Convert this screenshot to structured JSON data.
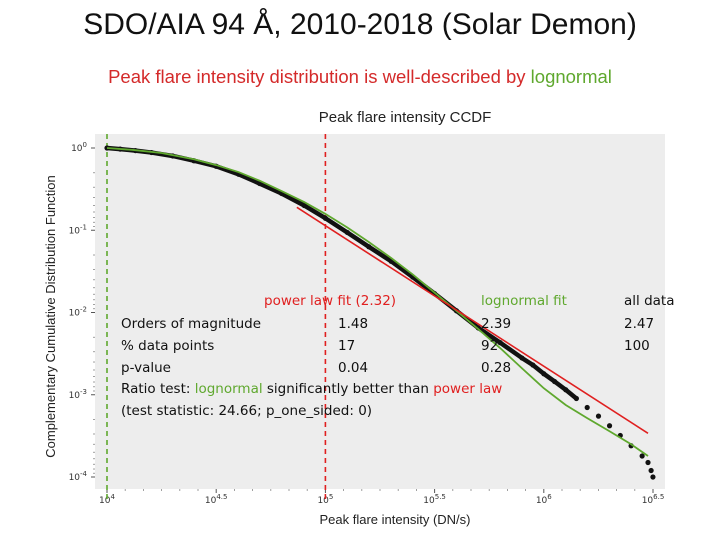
{
  "slide": {
    "title": "SDO/AIA 94 Å, 2010-2018 (Solar Demon)",
    "subtitle_prefix": "Peak flare intensity distribution is well-described by ",
    "subtitle_highlight": "lognormal"
  },
  "table": {
    "header_powerlaw": "power law fit (2.32)",
    "header_lognormal": "lognormal fit",
    "header_all": "all data",
    "rows": [
      {
        "label": "Orders of magnitude",
        "powerlaw": "1.48",
        "lognormal": "2.39",
        "all": "2.47"
      },
      {
        "label": "% data points",
        "powerlaw": "17",
        "lognormal": "92",
        "all": "100"
      },
      {
        "label": "p-value",
        "powerlaw": "0.04",
        "lognormal": "0.28",
        "all": ""
      }
    ],
    "ratio_prefix": "Ratio test: ",
    "ratio_lognormal": "lognormal",
    "ratio_middle": " significantly better than ",
    "ratio_powerlaw": "power law",
    "test_statistic": "(test statistic: 24.66; p_one_sided: 0)"
  },
  "colors": {
    "red": "#e02020",
    "green": "#5fa82e",
    "data": "#111111",
    "panel": "#ededed"
  },
  "chart_data": {
    "type": "scatter",
    "title": "Peak flare intensity CCDF",
    "xlabel": "Peak flare intensity (DN/s)",
    "ylabel": "Complementary Cumulative Distribution Function",
    "x_scale": "log",
    "y_scale": "log",
    "xlim": [
      10000,
      3162278
    ],
    "ylim": [
      0.0001,
      1
    ],
    "x_ticks": [
      {
        "value": 10000,
        "label": "10^4"
      },
      {
        "value": 31623,
        "label": "10^4.5"
      },
      {
        "value": 100000,
        "label": "10^5"
      },
      {
        "value": 316228,
        "label": "10^5.5"
      },
      {
        "value": 1000000,
        "label": "10^6"
      },
      {
        "value": 3162278,
        "label": "10^6.5"
      }
    ],
    "y_ticks": [
      {
        "value": 1,
        "label": "10^0"
      },
      {
        "value": 0.1,
        "label": "10^-1"
      },
      {
        "value": 0.01,
        "label": "10^-2"
      },
      {
        "value": 0.001,
        "label": "10^-3"
      },
      {
        "value": 0.0001,
        "label": "10^-4"
      }
    ],
    "series": [
      {
        "kind": "data",
        "x": [
          10000,
          11500,
          13500,
          16000,
          20000,
          25000,
          31600,
          40000,
          50000,
          63000,
          80000,
          100000,
          126000,
          158000,
          200000,
          251000,
          316000,
          398000,
          501000,
          631000,
          794000,
          891000,
          1000000,
          1120000,
          1260000,
          1410000,
          1580000,
          1780000,
          2000000,
          2240000,
          2510000,
          2820000,
          3000000,
          3100000,
          3160000
        ],
        "y": [
          1.0,
          0.97,
          0.93,
          0.88,
          0.8,
          0.7,
          0.6,
          0.48,
          0.37,
          0.28,
          0.2,
          0.14,
          0.094,
          0.063,
          0.042,
          0.027,
          0.017,
          0.0105,
          0.0065,
          0.0043,
          0.0028,
          0.0023,
          0.0018,
          0.00145,
          0.00115,
          0.0009,
          0.0007,
          0.00055,
          0.00042,
          0.00032,
          0.00024,
          0.00018,
          0.00015,
          0.00012,
          0.0001
        ]
      },
      {
        "kind": "lognormal_fit",
        "x": [
          10000,
          13000,
          17800,
          25000,
          31600,
          40000,
          50000,
          63000,
          80000,
          100000,
          126000,
          158000,
          200000,
          251000,
          316000,
          398000,
          501000,
          631000,
          794000,
          1000000,
          1260000,
          1580000,
          2000000,
          2510000,
          3000000
        ],
        "y": [
          1.0,
          0.95,
          0.87,
          0.73,
          0.62,
          0.51,
          0.4,
          0.3,
          0.22,
          0.158,
          0.108,
          0.072,
          0.046,
          0.029,
          0.0175,
          0.0105,
          0.0063,
          0.0037,
          0.0021,
          0.0012,
          0.00075,
          0.00052,
          0.00036,
          0.00025,
          0.00018
        ]
      },
      {
        "kind": "powerlaw_fit",
        "x": [
          74000,
          3000000
        ],
        "y": [
          0.19,
          0.00034
        ]
      }
    ],
    "markers": [
      {
        "kind": "powerlaw_xmin",
        "x": 100000
      },
      {
        "kind": "lognormal_xmin",
        "x": 10000
      }
    ],
    "grid": false,
    "legend": "none"
  }
}
